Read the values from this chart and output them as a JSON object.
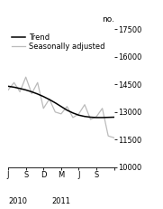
{
  "title": "no.",
  "ylim": [
    10000,
    17500
  ],
  "yticks": [
    10000,
    11500,
    13000,
    14500,
    16000,
    17500
  ],
  "legend_entries": [
    "Trend",
    "Seasonally adjusted"
  ],
  "trend_color": "#000000",
  "seasonal_color": "#bbbbbb",
  "background_color": "#ffffff",
  "trend_x": [
    0,
    1,
    2,
    3,
    4,
    5,
    6,
    7,
    8,
    9,
    10,
    11,
    12,
    13,
    14,
    15,
    16,
    17,
    18
  ],
  "trend_y": [
    14400,
    14350,
    14280,
    14200,
    14100,
    13980,
    13840,
    13680,
    13500,
    13300,
    13100,
    12950,
    12830,
    12760,
    12720,
    12700,
    12700,
    12710,
    12720
  ],
  "seasonal_x": [
    0,
    1,
    2,
    3,
    4,
    5,
    6,
    7,
    8,
    9,
    10,
    11,
    12,
    13,
    14,
    15,
    16,
    17,
    18
  ],
  "seasonal_y": [
    14200,
    14600,
    14100,
    14900,
    14000,
    14600,
    13200,
    13700,
    13000,
    12900,
    13300,
    12700,
    12900,
    13400,
    12600,
    12750,
    13200,
    11700,
    11600
  ],
  "xtick_positions": [
    0,
    3,
    6,
    9,
    12,
    15,
    18
  ],
  "xtick_labels": [
    "J",
    "S",
    "D",
    "M",
    "J",
    "S",
    ""
  ],
  "year_labels": [
    {
      "text": "2010",
      "x": 0
    },
    {
      "text": "2011",
      "x": 9
    }
  ],
  "tick_fontsize": 6,
  "legend_fontsize": 6,
  "title_fontsize": 6.5
}
